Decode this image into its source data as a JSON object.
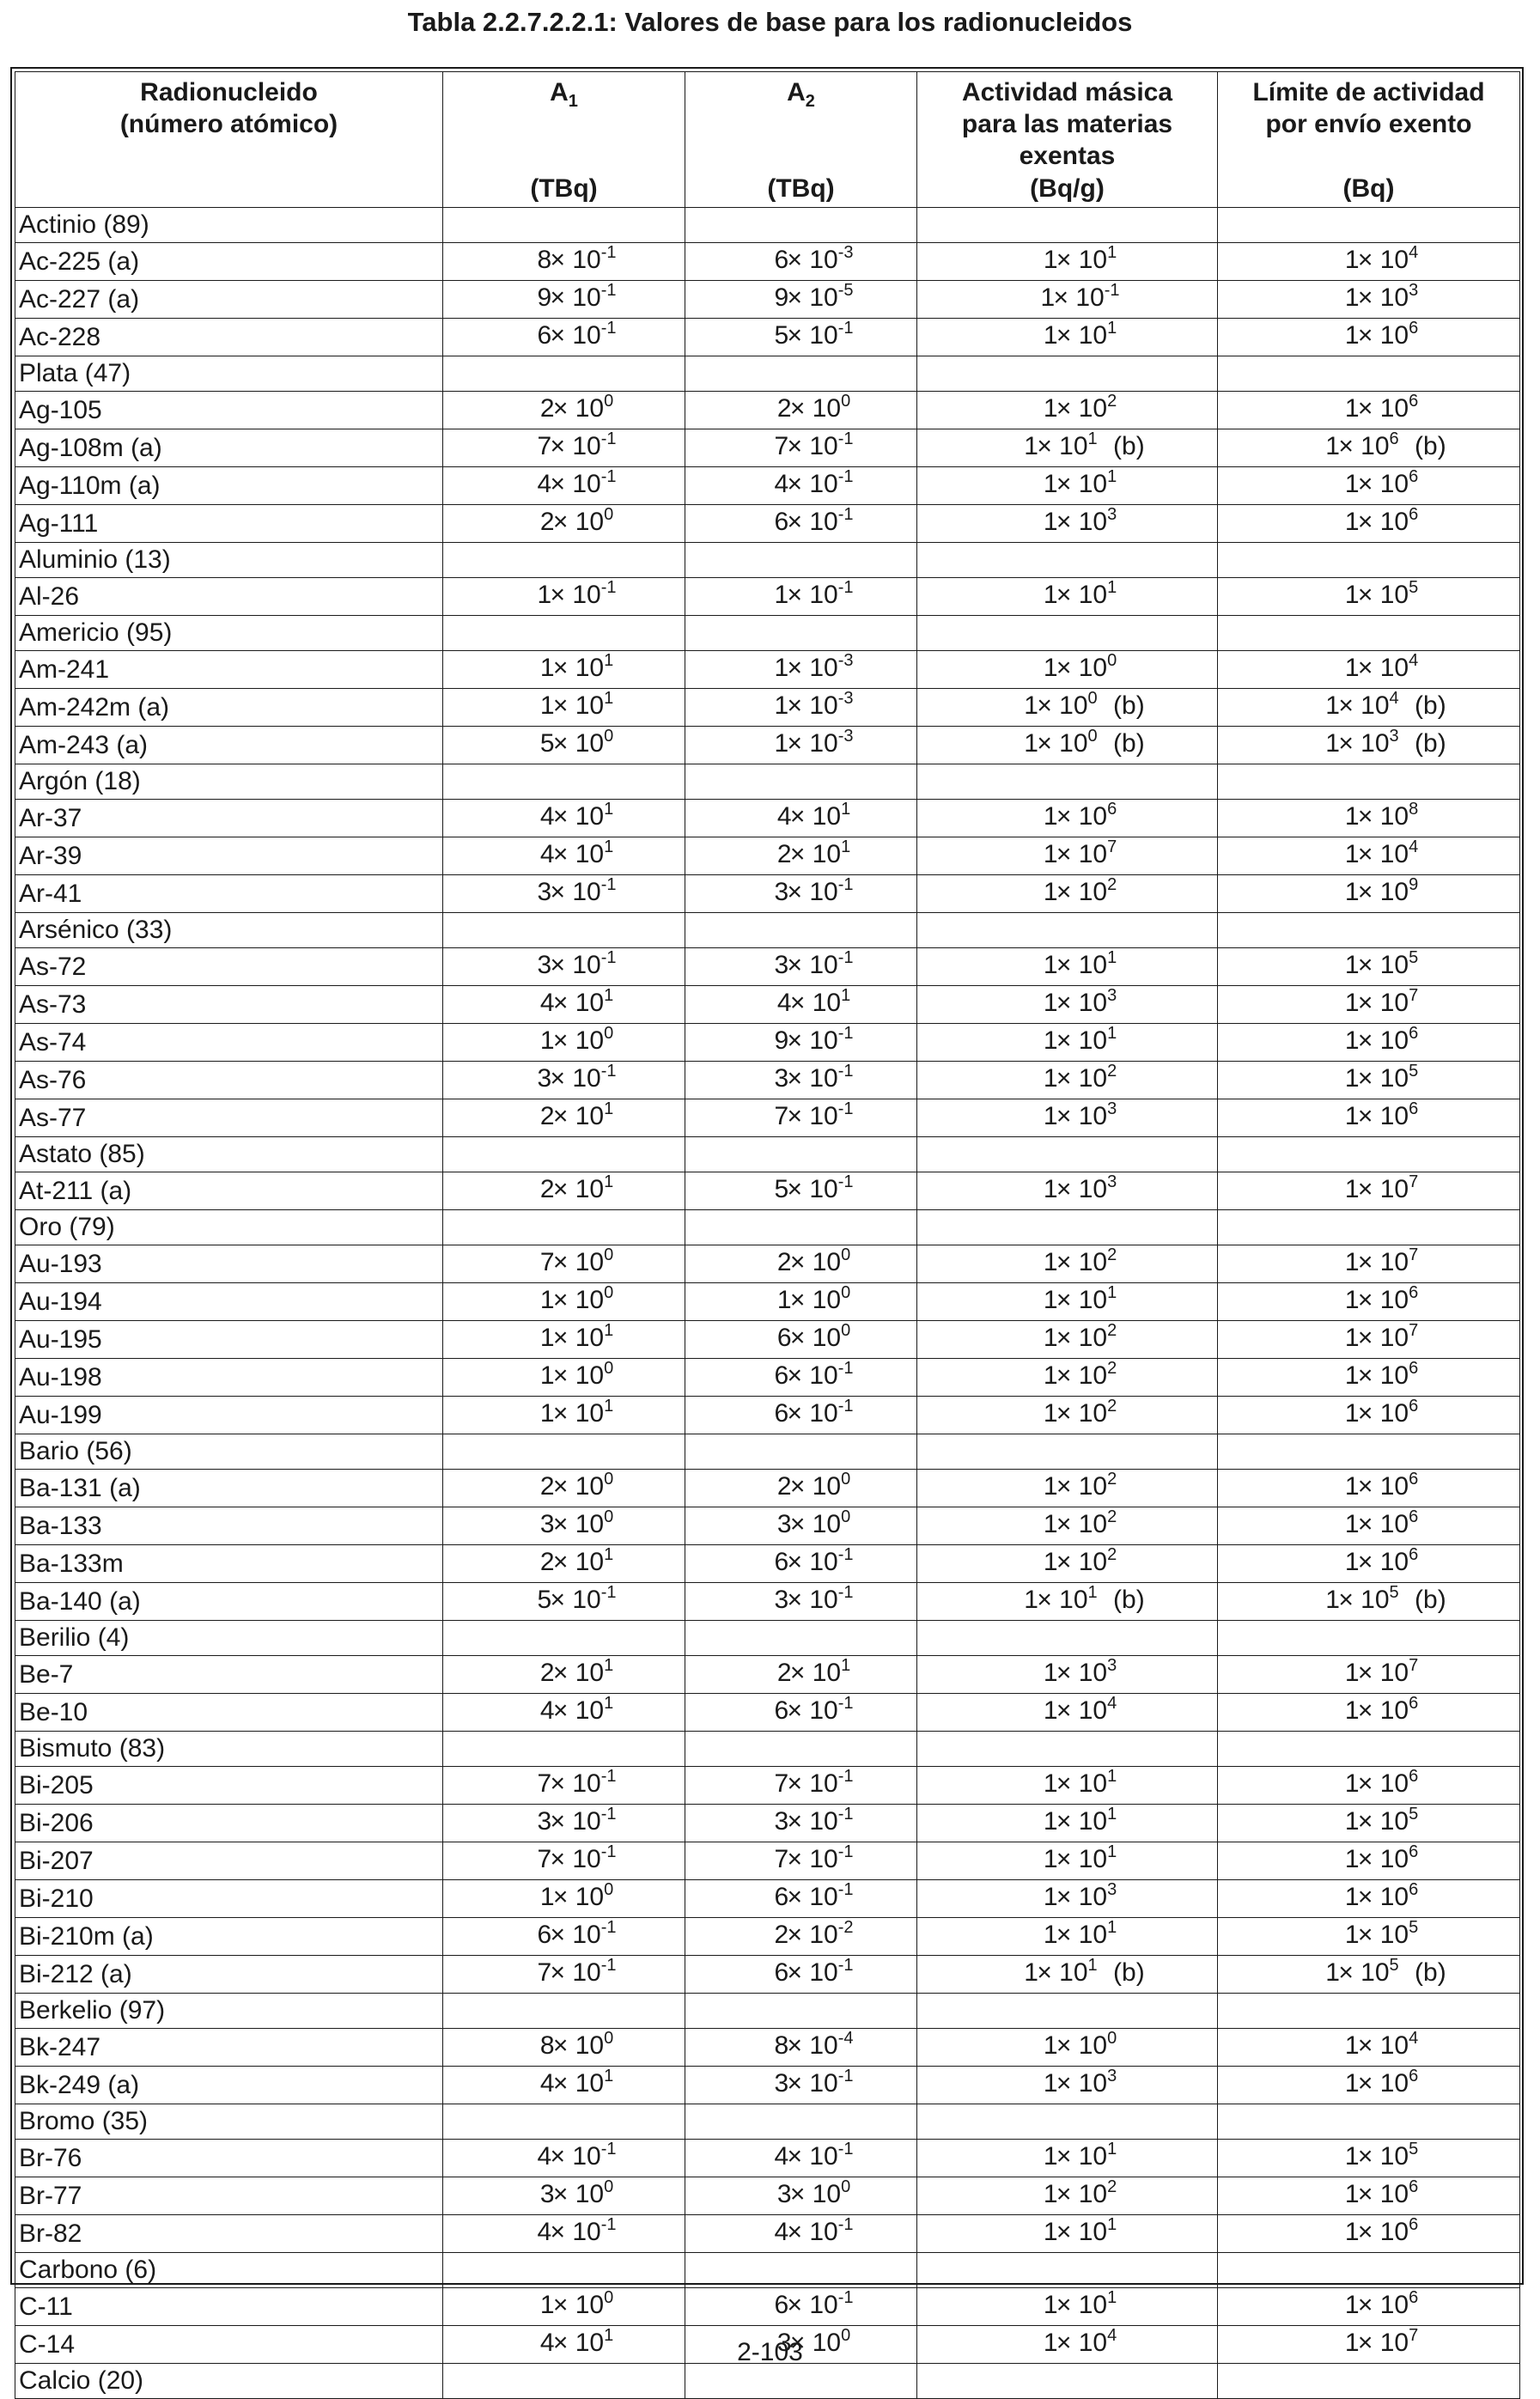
{
  "page_title": "Tabla 2.2.7.2.2.1: Valores de base para los radionucleidos",
  "page_number": "2-103",
  "headers": {
    "radionuclide": "Radionucleido\n(número atómico)",
    "a1_label": "A",
    "a1_sub": "1",
    "a1_unit": "(TBq)",
    "a2_label": "A",
    "a2_sub": "2",
    "a2_unit": "(TBq)",
    "mass_activity": "Actividad másica\npara las materias\nexentas",
    "mass_activity_unit": "(Bq/g)",
    "limit": "Límite de actividad\npor envío exento",
    "limit_unit": "(Bq)"
  },
  "rows": [
    {
      "name": "Actinio (89)",
      "group": true
    },
    {
      "name": "Ac-225 (a)",
      "a1": [
        "8",
        "-1"
      ],
      "a2": [
        "6",
        "-3"
      ],
      "act": [
        "1",
        "1",
        ""
      ],
      "lim": [
        "1",
        "4",
        ""
      ]
    },
    {
      "name": "Ac-227 (a)",
      "a1": [
        "9",
        "-1"
      ],
      "a2": [
        "9",
        "-5"
      ],
      "act": [
        "1",
        "-1",
        ""
      ],
      "lim": [
        "1",
        "3",
        ""
      ]
    },
    {
      "name": "Ac-228",
      "a1": [
        "6",
        "-1"
      ],
      "a2": [
        "5",
        "-1"
      ],
      "act": [
        "1",
        "1",
        ""
      ],
      "lim": [
        "1",
        "6",
        ""
      ]
    },
    {
      "name": "Plata (47)",
      "group": true
    },
    {
      "name": "Ag-105",
      "a1": [
        "2",
        "0"
      ],
      "a2": [
        "2",
        "0"
      ],
      "act": [
        "1",
        "2",
        ""
      ],
      "lim": [
        "1",
        "6",
        ""
      ]
    },
    {
      "name": "Ag-108m (a)",
      "a1": [
        "7",
        "-1"
      ],
      "a2": [
        "7",
        "-1"
      ],
      "act": [
        "1",
        "1",
        "(b)"
      ],
      "lim": [
        "1",
        "6",
        "(b)"
      ]
    },
    {
      "name": "Ag-110m (a)",
      "a1": [
        "4",
        "-1"
      ],
      "a2": [
        "4",
        "-1"
      ],
      "act": [
        "1",
        "1",
        ""
      ],
      "lim": [
        "1",
        "6",
        ""
      ]
    },
    {
      "name": "Ag-111",
      "a1": [
        "2",
        "0"
      ],
      "a2": [
        "6",
        "-1"
      ],
      "act": [
        "1",
        "3",
        ""
      ],
      "lim": [
        "1",
        "6",
        ""
      ]
    },
    {
      "name": "Aluminio (13)",
      "group": true
    },
    {
      "name": "Al-26",
      "a1": [
        "1",
        "-1"
      ],
      "a2": [
        "1",
        "-1"
      ],
      "act": [
        "1",
        "1",
        ""
      ],
      "lim": [
        "1",
        "5",
        ""
      ]
    },
    {
      "name": "Americio (95)",
      "group": true
    },
    {
      "name": "Am-241",
      "a1": [
        "1",
        "1"
      ],
      "a2": [
        "1",
        "-3"
      ],
      "act": [
        "1",
        "0",
        ""
      ],
      "lim": [
        "1",
        "4",
        ""
      ]
    },
    {
      "name": "Am-242m (a)",
      "a1": [
        "1",
        "1"
      ],
      "a2": [
        "1",
        "-3"
      ],
      "act": [
        "1",
        "0",
        "(b)"
      ],
      "lim": [
        "1",
        "4",
        "(b)"
      ]
    },
    {
      "name": "Am-243 (a)",
      "a1": [
        "5",
        "0"
      ],
      "a2": [
        "1",
        "-3"
      ],
      "act": [
        "1",
        "0",
        "(b)"
      ],
      "lim": [
        "1",
        "3",
        "(b)"
      ]
    },
    {
      "name": "Argón (18)",
      "group": true
    },
    {
      "name": "Ar-37",
      "a1": [
        "4",
        "1"
      ],
      "a2": [
        "4",
        "1"
      ],
      "act": [
        "1",
        "6",
        ""
      ],
      "lim": [
        "1",
        "8",
        ""
      ]
    },
    {
      "name": "Ar-39",
      "a1": [
        "4",
        "1"
      ],
      "a2": [
        "2",
        "1"
      ],
      "act": [
        "1",
        "7",
        ""
      ],
      "lim": [
        "1",
        "4",
        ""
      ]
    },
    {
      "name": "Ar-41",
      "a1": [
        "3",
        "-1"
      ],
      "a2": [
        "3",
        "-1"
      ],
      "act": [
        "1",
        "2",
        ""
      ],
      "lim": [
        "1",
        "9",
        ""
      ]
    },
    {
      "name": "Arsénico (33)",
      "group": true
    },
    {
      "name": "As-72",
      "a1": [
        "3",
        "-1"
      ],
      "a2": [
        "3",
        "-1"
      ],
      "act": [
        "1",
        "1",
        ""
      ],
      "lim": [
        "1",
        "5",
        ""
      ]
    },
    {
      "name": "As-73",
      "a1": [
        "4",
        "1"
      ],
      "a2": [
        "4",
        "1"
      ],
      "act": [
        "1",
        "3",
        ""
      ],
      "lim": [
        "1",
        "7",
        ""
      ]
    },
    {
      "name": "As-74",
      "a1": [
        "1",
        "0"
      ],
      "a2": [
        "9",
        "-1"
      ],
      "act": [
        "1",
        "1",
        ""
      ],
      "lim": [
        "1",
        "6",
        ""
      ]
    },
    {
      "name": "As-76",
      "a1": [
        "3",
        "-1"
      ],
      "a2": [
        "3",
        "-1"
      ],
      "act": [
        "1",
        "2",
        ""
      ],
      "lim": [
        "1",
        "5",
        ""
      ]
    },
    {
      "name": "As-77",
      "a1": [
        "2",
        "1"
      ],
      "a2": [
        "7",
        "-1"
      ],
      "act": [
        "1",
        "3",
        ""
      ],
      "lim": [
        "1",
        "6",
        ""
      ]
    },
    {
      "name": "Astato (85)",
      "group": true
    },
    {
      "name": "At-211 (a)",
      "a1": [
        "2",
        "1"
      ],
      "a2": [
        "5",
        "-1"
      ],
      "act": [
        "1",
        "3",
        ""
      ],
      "lim": [
        "1",
        "7",
        ""
      ]
    },
    {
      "name": "Oro (79)",
      "group": true
    },
    {
      "name": "Au-193",
      "a1": [
        "7",
        "0"
      ],
      "a2": [
        "2",
        "0"
      ],
      "act": [
        "1",
        "2",
        ""
      ],
      "lim": [
        "1",
        "7",
        ""
      ]
    },
    {
      "name": "Au-194",
      "a1": [
        "1",
        "0"
      ],
      "a2": [
        "1",
        "0"
      ],
      "act": [
        "1",
        "1",
        ""
      ],
      "lim": [
        "1",
        "6",
        ""
      ]
    },
    {
      "name": "Au-195",
      "a1": [
        "1",
        "1"
      ],
      "a2": [
        "6",
        "0"
      ],
      "act": [
        "1",
        "2",
        ""
      ],
      "lim": [
        "1",
        "7",
        ""
      ]
    },
    {
      "name": "Au-198",
      "a1": [
        "1",
        "0"
      ],
      "a2": [
        "6",
        "-1"
      ],
      "act": [
        "1",
        "2",
        ""
      ],
      "lim": [
        "1",
        "6",
        ""
      ]
    },
    {
      "name": "Au-199",
      "a1": [
        "1",
        "1"
      ],
      "a2": [
        "6",
        "-1"
      ],
      "act": [
        "1",
        "2",
        ""
      ],
      "lim": [
        "1",
        "6",
        ""
      ]
    },
    {
      "name": "Bario (56)",
      "group": true
    },
    {
      "name": "Ba-131 (a)",
      "a1": [
        "2",
        "0"
      ],
      "a2": [
        "2",
        "0"
      ],
      "act": [
        "1",
        "2",
        ""
      ],
      "lim": [
        "1",
        "6",
        ""
      ]
    },
    {
      "name": "Ba-133",
      "a1": [
        "3",
        "0"
      ],
      "a2": [
        "3",
        "0"
      ],
      "act": [
        "1",
        "2",
        ""
      ],
      "lim": [
        "1",
        "6",
        ""
      ]
    },
    {
      "name": "Ba-133m",
      "a1": [
        "2",
        "1"
      ],
      "a2": [
        "6",
        "-1"
      ],
      "act": [
        "1",
        "2",
        ""
      ],
      "lim": [
        "1",
        "6",
        ""
      ]
    },
    {
      "name": "Ba-140 (a)",
      "a1": [
        "5",
        "-1"
      ],
      "a2": [
        "3",
        "-1"
      ],
      "act": [
        "1",
        "1",
        "(b)"
      ],
      "lim": [
        "1",
        "5",
        "(b)"
      ]
    },
    {
      "name": "Berilio (4)",
      "group": true
    },
    {
      "name": "Be-7",
      "a1": [
        "2",
        "1"
      ],
      "a2": [
        "2",
        "1"
      ],
      "act": [
        "1",
        "3",
        ""
      ],
      "lim": [
        "1",
        "7",
        ""
      ]
    },
    {
      "name": "Be-10",
      "a1": [
        "4",
        "1"
      ],
      "a2": [
        "6",
        "-1"
      ],
      "act": [
        "1",
        "4",
        ""
      ],
      "lim": [
        "1",
        "6",
        ""
      ]
    },
    {
      "name": "Bismuto (83)",
      "group": true
    },
    {
      "name": "Bi-205",
      "a1": [
        "7",
        "-1"
      ],
      "a2": [
        "7",
        "-1"
      ],
      "act": [
        "1",
        "1",
        ""
      ],
      "lim": [
        "1",
        "6",
        ""
      ]
    },
    {
      "name": "Bi-206",
      "a1": [
        "3",
        "-1"
      ],
      "a2": [
        "3",
        "-1"
      ],
      "act": [
        "1",
        "1",
        ""
      ],
      "lim": [
        "1",
        "5",
        ""
      ]
    },
    {
      "name": "Bi-207",
      "a1": [
        "7",
        "-1"
      ],
      "a2": [
        "7",
        "-1"
      ],
      "act": [
        "1",
        "1",
        ""
      ],
      "lim": [
        "1",
        "6",
        ""
      ]
    },
    {
      "name": "Bi-210",
      "a1": [
        "1",
        "0"
      ],
      "a2": [
        "6",
        "-1"
      ],
      "act": [
        "1",
        "3",
        ""
      ],
      "lim": [
        "1",
        "6",
        ""
      ]
    },
    {
      "name": "Bi-210m (a)",
      "a1": [
        "6",
        "-1"
      ],
      "a2": [
        "2",
        "-2"
      ],
      "act": [
        "1",
        "1",
        ""
      ],
      "lim": [
        "1",
        "5",
        ""
      ]
    },
    {
      "name": "Bi-212 (a)",
      "a1": [
        "7",
        "-1"
      ],
      "a2": [
        "6",
        "-1"
      ],
      "act": [
        "1",
        "1",
        "(b)"
      ],
      "lim": [
        "1",
        "5",
        "(b)"
      ]
    },
    {
      "name": "Berkelio (97)",
      "group": true
    },
    {
      "name": "Bk-247",
      "a1": [
        "8",
        "0"
      ],
      "a2": [
        "8",
        "-4"
      ],
      "act": [
        "1",
        "0",
        ""
      ],
      "lim": [
        "1",
        "4",
        ""
      ]
    },
    {
      "name": "Bk-249 (a)",
      "a1": [
        "4",
        "1"
      ],
      "a2": [
        "3",
        "-1"
      ],
      "act": [
        "1",
        "3",
        ""
      ],
      "lim": [
        "1",
        "6",
        ""
      ]
    },
    {
      "name": "Bromo (35)",
      "group": true
    },
    {
      "name": "Br-76",
      "a1": [
        "4",
        "-1"
      ],
      "a2": [
        "4",
        "-1"
      ],
      "act": [
        "1",
        "1",
        ""
      ],
      "lim": [
        "1",
        "5",
        ""
      ]
    },
    {
      "name": "Br-77",
      "a1": [
        "3",
        "0"
      ],
      "a2": [
        "3",
        "0"
      ],
      "act": [
        "1",
        "2",
        ""
      ],
      "lim": [
        "1",
        "6",
        ""
      ]
    },
    {
      "name": "Br-82",
      "a1": [
        "4",
        "-1"
      ],
      "a2": [
        "4",
        "-1"
      ],
      "act": [
        "1",
        "1",
        ""
      ],
      "lim": [
        "1",
        "6",
        ""
      ]
    },
    {
      "name": "Carbono (6)",
      "group": true
    },
    {
      "name": "C-11",
      "a1": [
        "1",
        "0"
      ],
      "a2": [
        "6",
        "-1"
      ],
      "act": [
        "1",
        "1",
        ""
      ],
      "lim": [
        "1",
        "6",
        ""
      ]
    },
    {
      "name": "C-14",
      "a1": [
        "4",
        "1"
      ],
      "a2": [
        "3",
        "0"
      ],
      "act": [
        "1",
        "4",
        ""
      ],
      "lim": [
        "1",
        "7",
        ""
      ]
    },
    {
      "name": "Calcio (20)",
      "group": true
    }
  ]
}
